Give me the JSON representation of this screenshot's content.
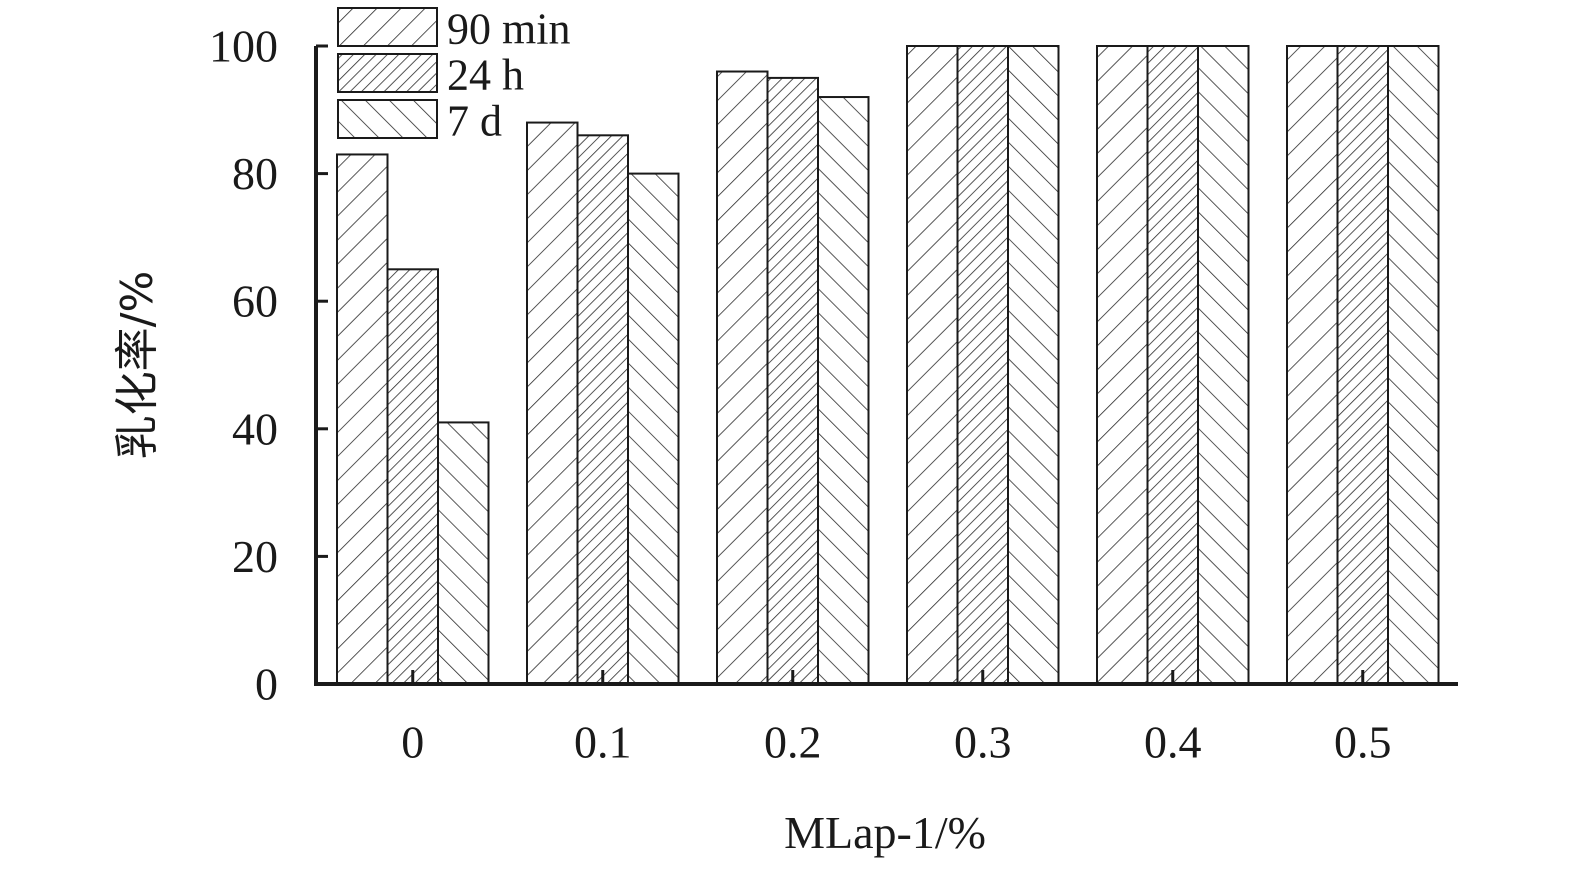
{
  "chart_data": {
    "type": "bar",
    "xlabel": "MLap-1/%",
    "ylabel": "乳化率/%",
    "categories": [
      "0",
      "0.1",
      "0.2",
      "0.3",
      "0.4",
      "0.5"
    ],
    "yticks": [
      "0",
      "20",
      "40",
      "60",
      "80",
      "100"
    ],
    "ylim": [
      0,
      100
    ],
    "legend_position": "top-left",
    "series": [
      {
        "name": "90 min",
        "values": [
          83,
          88,
          96,
          100,
          100,
          100
        ],
        "pattern": "hatch-coarse"
      },
      {
        "name": "24 h",
        "values": [
          65,
          86,
          95,
          100,
          100,
          100
        ],
        "pattern": "hatch-dense"
      },
      {
        "name": "7 d",
        "values": [
          41,
          80,
          92,
          100,
          100,
          100
        ],
        "pattern": "hatch-backslash"
      }
    ]
  }
}
